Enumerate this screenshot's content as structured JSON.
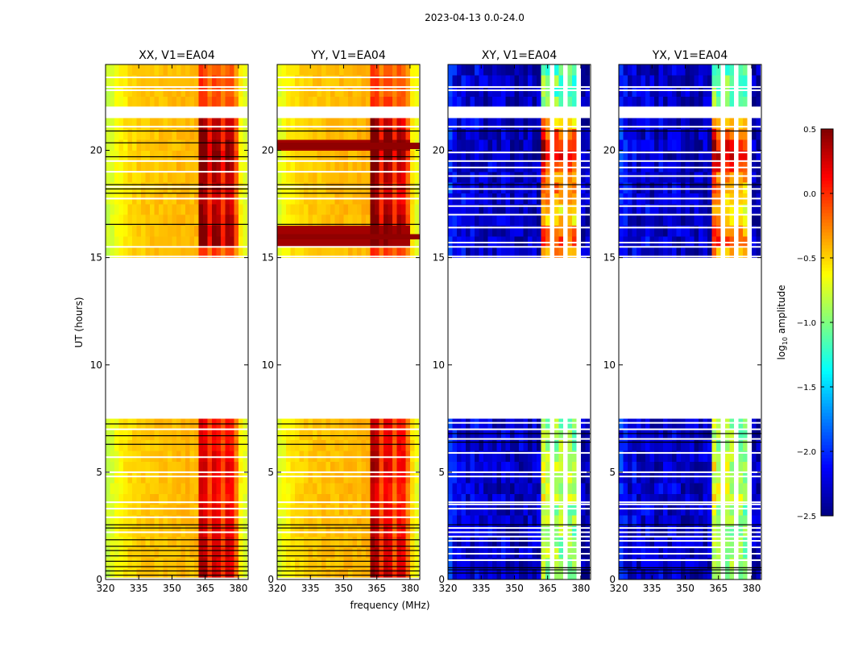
{
  "chart_data": {
    "type": "heatmap",
    "title": "2023-04-13 0.0-24.0",
    "xlabel": "frequency (MHz)",
    "ylabel": "UT (hours)",
    "xlim": [
      320,
      384.4
    ],
    "ylim": [
      0,
      24
    ],
    "xticks": [
      "320",
      "335",
      "350",
      "365",
      "380"
    ],
    "yticks": [
      "0",
      "5",
      "10",
      "15",
      "20"
    ],
    "colorbar": {
      "label_main": "log",
      "label_sub": "10",
      "label_rest": " amplitude",
      "colormap": "jet",
      "range": [
        -2.5,
        0.5
      ],
      "ticks": [
        "0.5",
        "0.0",
        "−0.5",
        "−1.0",
        "−1.5",
        "−2.0",
        "−2.5"
      ]
    },
    "channel_edges_start": 320,
    "channel_width_mhz": 2,
    "time_bin_hours": 0.5,
    "flagged_time_bins": [
      15,
      16,
      17,
      18,
      19,
      20,
      21,
      22,
      23,
      24,
      25,
      26,
      27,
      28,
      29,
      43
    ],
    "panels": [
      {
        "title": "XX, V1=EA04",
        "base": [
          -0.78,
          -0.72,
          -0.66,
          -0.6,
          -0.56,
          -0.52,
          -0.5,
          -0.48,
          -0.47,
          -0.46,
          -0.45,
          -0.45,
          -0.44,
          -0.44,
          -0.43,
          -0.43,
          -0.42,
          -0.42,
          -0.42,
          -0.42,
          -0.41,
          -0.4,
          -0.4,
          -0.42,
          -0.4,
          -0.4,
          -0.42,
          -0.4,
          -0.4,
          -0.45,
          -0.6,
          -0.7
        ],
        "rfi_mask": [
          0,
          0,
          0,
          0,
          0,
          0,
          0,
          0,
          0,
          0,
          0,
          0,
          0,
          0,
          0,
          0,
          0,
          0,
          0,
          0,
          0,
          0.85,
          0.8,
          0.45,
          0.75,
          0.7,
          0.4,
          0.7,
          0.65,
          0.3,
          0,
          0
        ],
        "rfi_scale": [
          1.0,
          0.9,
          0.9,
          0.9,
          0.8,
          0.8,
          0.8,
          0.7,
          0.75,
          0.8,
          0.85,
          0.8,
          0.7,
          0.75,
          0.7,
          0,
          0,
          0,
          0,
          0,
          0,
          0,
          0,
          0,
          0,
          0,
          0,
          0,
          0,
          0,
          0.5,
          1.2,
          1.2,
          1.1,
          1.0,
          0.9,
          1.0,
          1.0,
          1.2,
          1.3,
          1.2,
          1.1,
          1.0,
          0,
          0.5,
          0.4,
          0.5,
          0.4
        ],
        "noise": 0.06,
        "black_lines": [
          0.2,
          0.4,
          0.6,
          0.85,
          1.1,
          1.35,
          1.55,
          1.85,
          2.4,
          2.55,
          6.3,
          6.7,
          7.25,
          16.55,
          18.0,
          18.2,
          18.4,
          19.7,
          20.35,
          20.9
        ],
        "white_lines": [
          0.05,
          2.2,
          2.9,
          3.3,
          3.6,
          4.8,
          5.0,
          5.7,
          7.0,
          15.05,
          15.5,
          17.75,
          18.3,
          19.0,
          19.5,
          21.1,
          22.0,
          22.8,
          22.95,
          23.4
        ]
      },
      {
        "title": "YY, V1=EA04",
        "base": [
          -0.72,
          -0.66,
          -0.6,
          -0.55,
          -0.52,
          -0.5,
          -0.48,
          -0.47,
          -0.46,
          -0.45,
          -0.44,
          -0.44,
          -0.43,
          -0.43,
          -0.42,
          -0.42,
          -0.42,
          -0.41,
          -0.41,
          -0.4,
          -0.4,
          -0.4,
          -0.4,
          -0.42,
          -0.4,
          -0.4,
          -0.42,
          -0.4,
          -0.4,
          -0.45,
          -0.55,
          -0.68
        ],
        "rfi_mask": [
          0,
          0,
          0,
          0,
          0,
          0,
          0,
          0,
          0,
          0,
          0,
          0,
          0,
          0,
          0,
          0,
          0,
          0,
          0,
          0,
          0,
          0.9,
          0.85,
          0.4,
          0.75,
          0.7,
          0.35,
          0.65,
          0.6,
          0.3,
          0,
          0
        ],
        "rfi_scale": [
          1.0,
          0.9,
          0.85,
          0.9,
          0.8,
          0.8,
          0.75,
          0.7,
          0.7,
          0.8,
          0.9,
          0.85,
          0.8,
          0.8,
          0.75,
          0,
          0,
          0,
          0,
          0,
          0,
          0,
          0,
          0,
          0,
          0,
          0,
          0,
          0,
          0,
          0.5,
          1.2,
          1.3,
          1.2,
          1.0,
          0.9,
          0.9,
          1.0,
          1.1,
          1.4,
          1.4,
          1.2,
          1.0,
          0,
          0.5,
          0.4,
          0.5,
          0.4
        ],
        "noise": 0.06,
        "black_lines": [
          0.2,
          0.4,
          0.6,
          0.85,
          1.1,
          1.35,
          1.55,
          1.85,
          2.4,
          2.55,
          6.3,
          6.7,
          7.25,
          16.55,
          18.0,
          18.2,
          18.4,
          19.7,
          20.9
        ],
        "white_lines": [
          0.05,
          2.2,
          2.9,
          3.3,
          3.6,
          4.8,
          5.0,
          5.7,
          7.0,
          15.05,
          15.5,
          17.75,
          18.3,
          19.0,
          19.5,
          21.1,
          22.0,
          22.8,
          22.95,
          23.4
        ],
        "red_bands": [
          [
            15.85,
            16.1
          ],
          [
            20.05,
            20.35
          ]
        ]
      },
      {
        "title": "XY, V1=EA04",
        "base": [
          -2.0,
          -2.15,
          -2.25,
          -2.2,
          -2.3,
          -2.25,
          -2.2,
          -2.3,
          -2.3,
          -2.25,
          -2.3,
          -2.3,
          -2.25,
          -2.3,
          -2.35,
          -2.3,
          -2.3,
          -2.35,
          -2.3,
          -2.3,
          -2.3,
          -2.2,
          -2.2,
          null,
          -2.2,
          -2.2,
          null,
          -2.2,
          -2.2,
          null,
          -2.35,
          -2.4
        ],
        "rfi_mask": [
          0,
          0,
          0,
          0,
          0,
          0,
          0,
          0,
          0,
          0,
          0,
          0,
          0,
          0,
          0,
          0,
          0,
          0,
          0,
          0,
          0,
          1.4,
          1.3,
          0,
          1.3,
          1.25,
          0,
          1.25,
          1.2,
          0,
          0,
          0
        ],
        "rfi_scale": [
          0.9,
          1.0,
          1.0,
          0.95,
          1.0,
          1.05,
          1.0,
          1.1,
          1.1,
          1.05,
          1.1,
          1.05,
          1.0,
          1.0,
          0.95,
          0,
          0,
          0,
          0,
          0,
          0,
          0,
          0,
          0,
          0,
          0,
          0,
          0,
          0,
          0,
          1.4,
          1.7,
          1.6,
          1.4,
          1.3,
          1.4,
          1.5,
          1.5,
          1.7,
          1.9,
          1.8,
          1.6,
          1.4,
          0,
          0.9,
          0.85,
          0.9,
          0.85
        ],
        "noise": 0.22,
        "black_lines": [
          0.3,
          0.45,
          0.55,
          2.55,
          6.4,
          6.8,
          18.4,
          20.9
        ],
        "white_lines": [
          0.9,
          1.2,
          1.5,
          1.8,
          2.0,
          2.2,
          2.4,
          3.3,
          3.5,
          3.6,
          4.8,
          5.0,
          5.9,
          6.55,
          7.0,
          7.3,
          15.05,
          15.5,
          15.7,
          16.4,
          17.0,
          17.4,
          17.75,
          18.2,
          18.8,
          19.2,
          19.5,
          19.9,
          21.1,
          22.0,
          22.8,
          22.95
        ]
      },
      {
        "title": "YX, V1=EA04",
        "base": [
          -2.05,
          -2.15,
          -2.25,
          -2.2,
          -2.3,
          -2.25,
          -2.2,
          -2.3,
          -2.3,
          -2.25,
          -2.3,
          -2.3,
          -2.25,
          -2.3,
          -2.35,
          -2.3,
          -2.3,
          -2.35,
          -2.3,
          -2.3,
          -2.3,
          -2.2,
          -2.2,
          null,
          -2.2,
          -2.2,
          null,
          -2.2,
          -2.2,
          null,
          -2.35,
          -2.4
        ],
        "rfi_mask": [
          0,
          0,
          0,
          0,
          0,
          0,
          0,
          0,
          0,
          0,
          0,
          0,
          0,
          0,
          0,
          0,
          0,
          0,
          0,
          0,
          0,
          1.4,
          1.3,
          0,
          1.3,
          1.25,
          0,
          1.25,
          1.2,
          0,
          0,
          0
        ],
        "rfi_scale": [
          0.9,
          1.0,
          1.0,
          0.95,
          1.0,
          1.05,
          1.0,
          1.1,
          1.1,
          1.05,
          1.1,
          1.05,
          1.0,
          1.0,
          0.95,
          0,
          0,
          0,
          0,
          0,
          0,
          0,
          0,
          0,
          0,
          0,
          0,
          0,
          0,
          0,
          1.4,
          1.7,
          1.6,
          1.4,
          1.3,
          1.4,
          1.5,
          1.5,
          1.7,
          1.9,
          1.8,
          1.6,
          1.4,
          0,
          0.9,
          0.85,
          0.9,
          0.85
        ],
        "noise": 0.22,
        "black_lines": [
          0.3,
          0.45,
          0.55,
          2.55,
          6.4,
          6.8,
          18.4,
          20.9
        ],
        "white_lines": [
          0.9,
          1.2,
          1.5,
          1.8,
          2.0,
          2.2,
          2.4,
          3.3,
          3.5,
          3.6,
          4.8,
          5.0,
          5.9,
          6.55,
          7.0,
          7.3,
          15.05,
          15.5,
          15.7,
          16.4,
          17.0,
          17.4,
          17.75,
          18.2,
          18.8,
          19.2,
          19.5,
          19.9,
          21.1,
          22.0,
          22.8,
          22.95
        ]
      }
    ]
  }
}
